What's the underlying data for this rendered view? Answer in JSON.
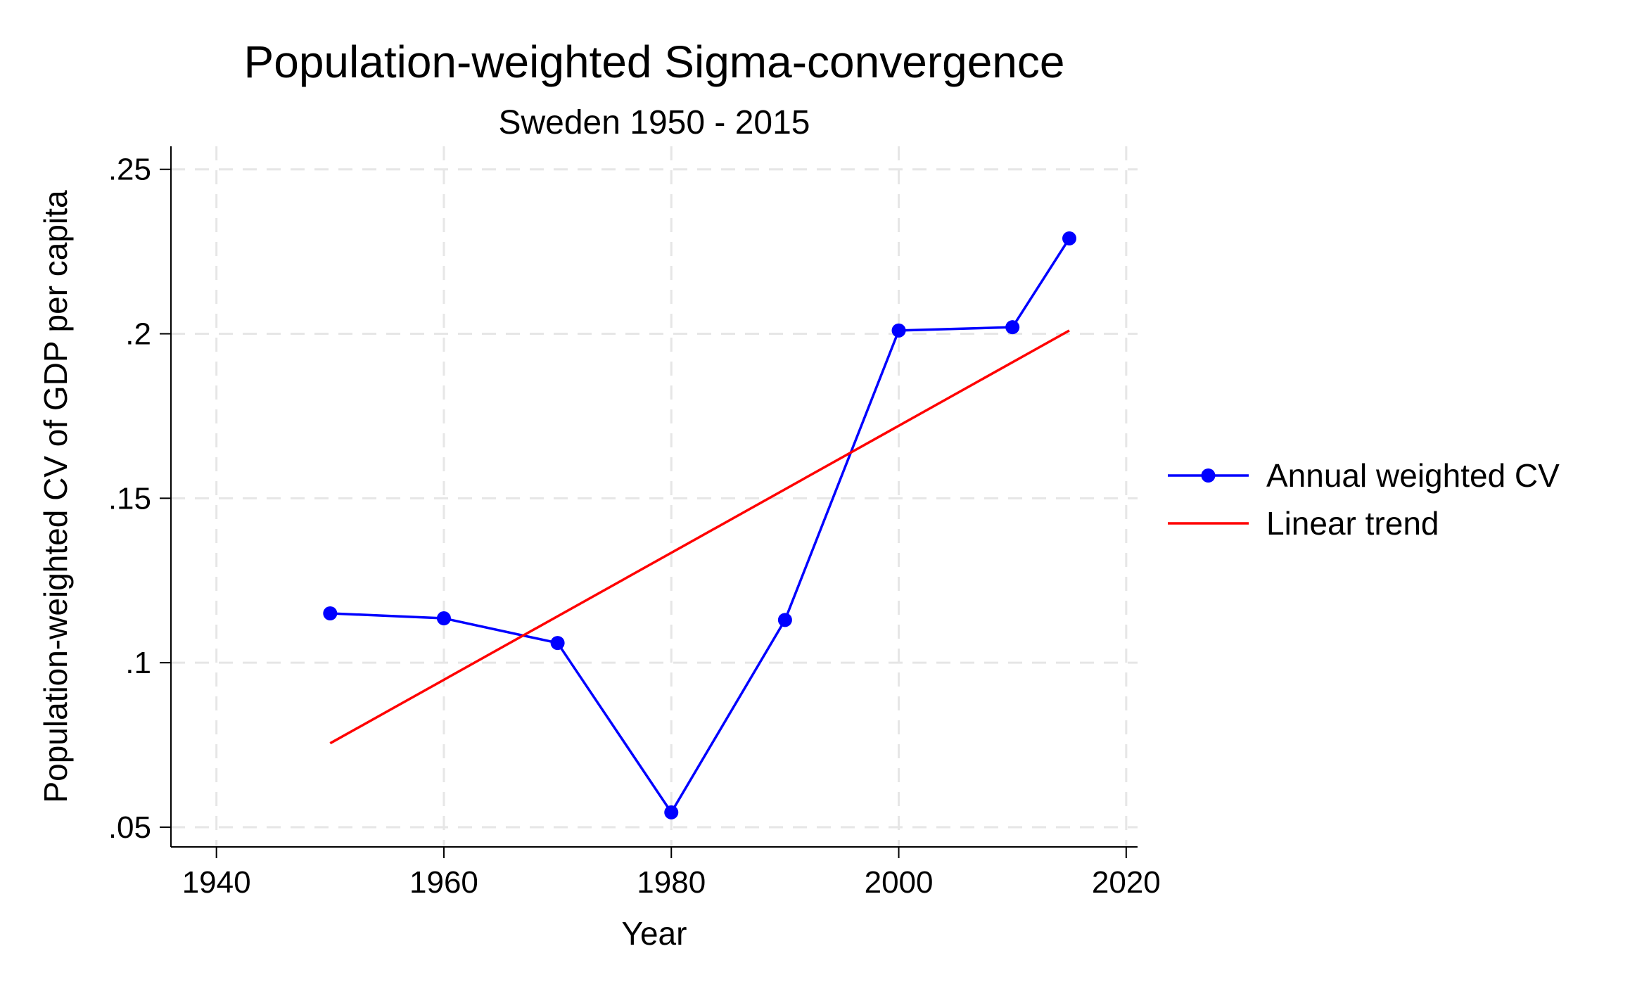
{
  "chart_data": {
    "type": "line",
    "title": "Population-weighted Sigma-convergence",
    "subtitle": "Sweden 1950 - 2015",
    "xlabel": "Year",
    "ylabel": "Population-weighted CV of GDP per capita",
    "xlim": [
      1936,
      2021
    ],
    "ylim": [
      0.044,
      0.257
    ],
    "x_ticks": [
      1940,
      1960,
      1980,
      2000,
      2020
    ],
    "x_tick_labels": [
      "1940",
      "1960",
      "1980",
      "2000",
      "2020"
    ],
    "y_ticks": [
      0.05,
      0.1,
      0.15,
      0.2,
      0.25
    ],
    "y_tick_labels": [
      ".05",
      ".1",
      ".15",
      ".2",
      ".25"
    ],
    "grid": true,
    "legend_position": "right",
    "series": [
      {
        "name": "Annual weighted CV",
        "color": "#0000ff",
        "marker": "circle",
        "x": [
          1950,
          1960,
          1970,
          1980,
          1990,
          2000,
          2010,
          2015
        ],
        "values": [
          0.115,
          0.1135,
          0.106,
          0.0545,
          0.113,
          0.201,
          0.202,
          0.229
        ]
      },
      {
        "name": "Linear trend",
        "color": "#ff0000",
        "marker": "none",
        "x": [
          1950,
          2015
        ],
        "values": [
          0.0755,
          0.201
        ]
      }
    ]
  }
}
